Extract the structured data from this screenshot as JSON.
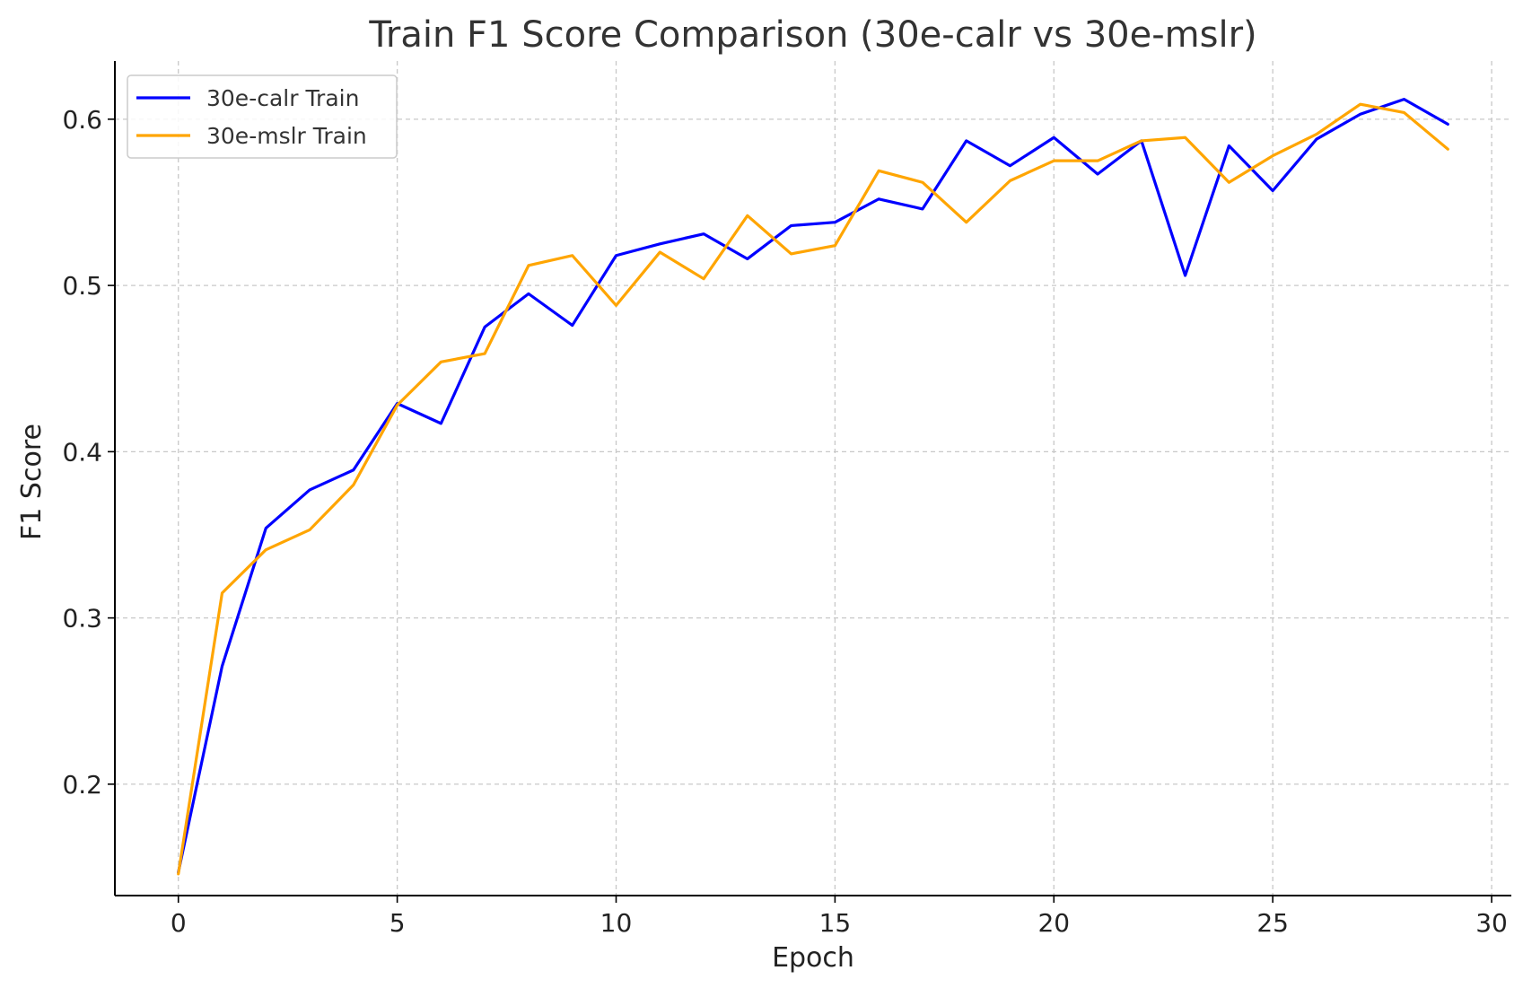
{
  "chart_data": {
    "type": "line",
    "title": "Train F1 Score Comparison (30e-calr vs 30e-mslr)",
    "xlabel": "Epoch",
    "ylabel": "F1 Score",
    "xlim": [
      -1.45,
      30.45
    ],
    "ylim": [
      0.133,
      0.635
    ],
    "xticks": [
      0,
      5,
      10,
      15,
      20,
      25,
      30
    ],
    "yticks": [
      0.2,
      0.3,
      0.4,
      0.5,
      0.6
    ],
    "xtick_labels": [
      "0",
      "5",
      "10",
      "15",
      "20",
      "25",
      "30"
    ],
    "ytick_labels": [
      "0.2",
      "0.3",
      "0.4",
      "0.5",
      "0.6"
    ],
    "grid": true,
    "legend_position": "top-left",
    "x": [
      0,
      1,
      2,
      3,
      4,
      5,
      6,
      7,
      8,
      9,
      10,
      11,
      12,
      13,
      14,
      15,
      16,
      17,
      18,
      19,
      20,
      21,
      22,
      23,
      24,
      25,
      26,
      27,
      28,
      29
    ],
    "series": [
      {
        "name": "30e-calr Train",
        "color": "#0000ff",
        "values": [
          0.147,
          0.271,
          0.354,
          0.377,
          0.389,
          0.429,
          0.417,
          0.475,
          0.495,
          0.476,
          0.518,
          0.525,
          0.531,
          0.516,
          0.536,
          0.538,
          0.552,
          0.546,
          0.587,
          0.572,
          0.589,
          0.567,
          0.587,
          0.506,
          0.584,
          0.557,
          0.588,
          0.603,
          0.612,
          0.597
        ]
      },
      {
        "name": "30e-mslr Train",
        "color": "#ffa500",
        "values": [
          0.146,
          0.315,
          0.341,
          0.353,
          0.38,
          0.428,
          0.454,
          0.459,
          0.512,
          0.518,
          0.488,
          0.52,
          0.504,
          0.542,
          0.519,
          0.524,
          0.569,
          0.562,
          0.538,
          0.563,
          0.575,
          0.575,
          0.587,
          0.589,
          0.562,
          0.578,
          0.591,
          0.609,
          0.604,
          0.582
        ]
      }
    ]
  }
}
